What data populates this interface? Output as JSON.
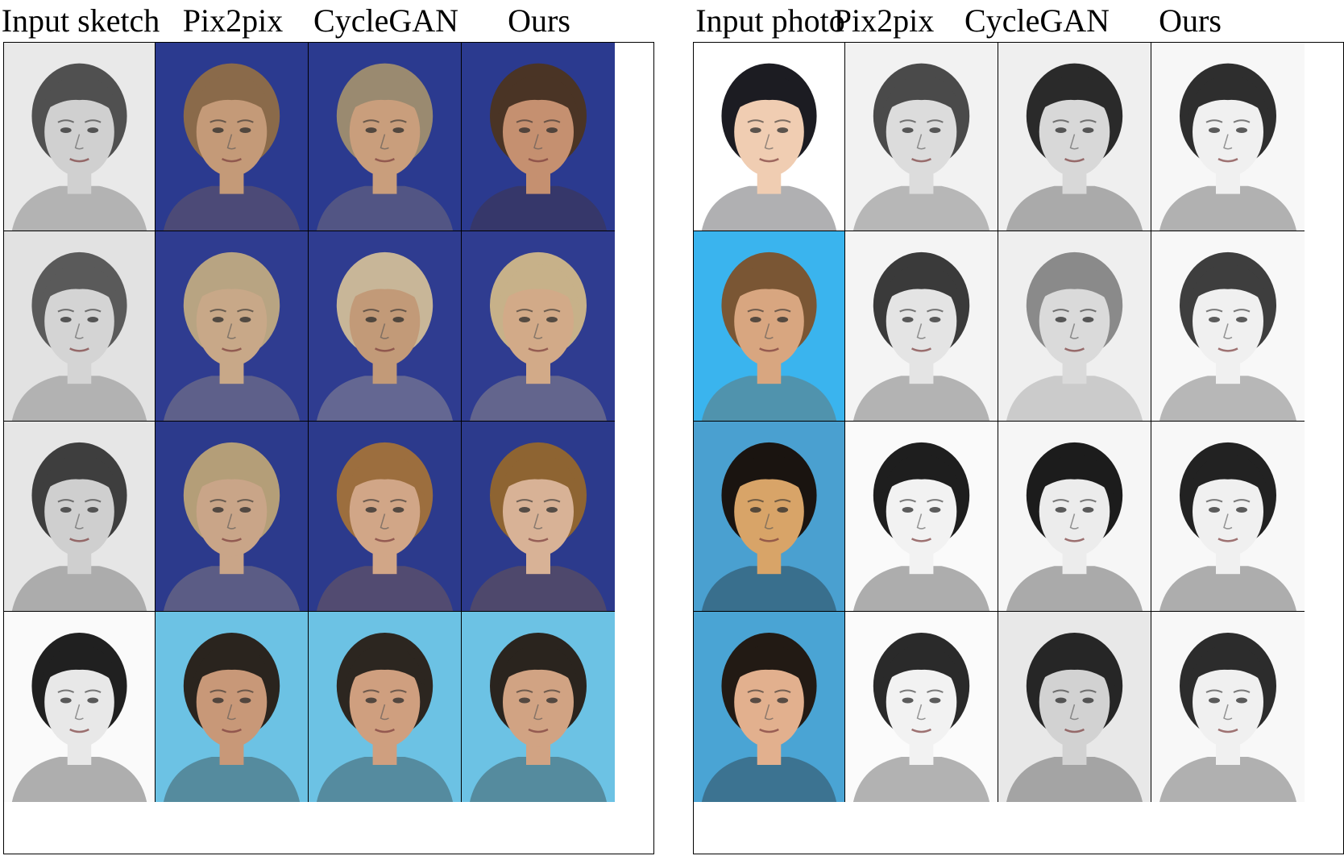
{
  "figure": {
    "left_panel": {
      "columns": [
        "Input sketch",
        "Pix2pix",
        "CycleGAN",
        "Ours"
      ],
      "rows": [
        {
          "bg": [
            "#e9e9e9",
            "#2b3a8f",
            "#2b3a8f",
            "#2b3a8f"
          ],
          "skin": [
            "#d0d0d0",
            "#c49a78",
            "#c99e7c",
            "#c59070"
          ],
          "hair": [
            "#505050",
            "#8a6a4a",
            "#9a8a70",
            "#4a3425"
          ]
        },
        {
          "bg": [
            "#e2e2e2",
            "#2f3c90",
            "#2f3c90",
            "#2f3c90"
          ],
          "skin": [
            "#d4d4d4",
            "#c8a888",
            "#c29a78",
            "#d2aa88"
          ],
          "hair": [
            "#5a5a5a",
            "#b8a482",
            "#c8b698",
            "#c7b189"
          ]
        },
        {
          "bg": [
            "#e6e6e6",
            "#2c3a8c",
            "#2c3a8c",
            "#2c3a8c"
          ],
          "skin": [
            "#cfcfcf",
            "#c9a588",
            "#d1a687",
            "#d8b296"
          ],
          "hair": [
            "#3e3e3e",
            "#b49e78",
            "#9c6e3e",
            "#8e6432"
          ]
        },
        {
          "bg": [
            "#fafafa",
            "#6cc2e4",
            "#6cc2e4",
            "#6cc2e4"
          ],
          "skin": [
            "#e8e8e8",
            "#c89878",
            "#cf9f7f",
            "#d1a383"
          ],
          "hair": [
            "#202020",
            "#2a241e",
            "#2c2620",
            "#2a241e"
          ]
        }
      ]
    },
    "right_panel": {
      "columns": [
        "Input photo",
        "Pix2pix",
        "CycleGAN",
        "Ours"
      ],
      "rows": [
        {
          "bg": [
            "#ffffff",
            "#f2f2f2",
            "#efefef",
            "#f7f7f7"
          ],
          "skin": [
            "#f0cdb2",
            "#dcdcdc",
            "#d8d8d8",
            "#f0f0f0"
          ],
          "hair": [
            "#1c1c22",
            "#4a4a4a",
            "#2a2a2a",
            "#2e2e2e"
          ]
        },
        {
          "bg": [
            "#3ab4ee",
            "#f4f4f4",
            "#efefef",
            "#f8f8f8"
          ],
          "skin": [
            "#d8a680",
            "#e4e4e4",
            "#dadada",
            "#f0f0f0"
          ],
          "hair": [
            "#7a5634",
            "#3a3a3a",
            "#8a8a8a",
            "#3e3e3e"
          ]
        },
        {
          "bg": [
            "#4aa0d0",
            "#fafafa",
            "#f6f6f6",
            "#f8f8f8"
          ],
          "skin": [
            "#d8a468",
            "#f2f2f2",
            "#ececec",
            "#f0f0f0"
          ],
          "hair": [
            "#1a1410",
            "#1e1e1e",
            "#1c1c1c",
            "#222222"
          ]
        },
        {
          "bg": [
            "#4aa4d4",
            "#fbfbfb",
            "#e8e8e8",
            "#f8f8f8"
          ],
          "skin": [
            "#e2b08e",
            "#f2f2f2",
            "#d2d2d2",
            "#f0f0f0"
          ],
          "hair": [
            "#221a14",
            "#2a2a2a",
            "#262626",
            "#2c2c2c"
          ]
        }
      ]
    }
  }
}
